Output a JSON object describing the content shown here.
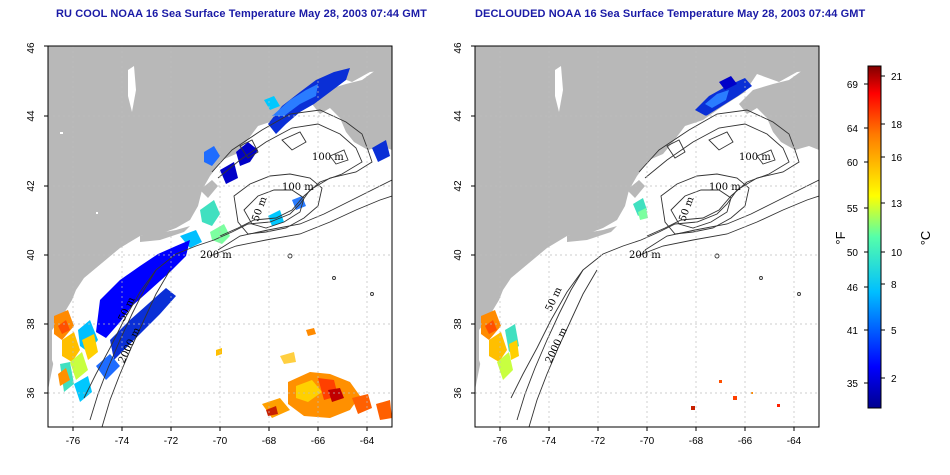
{
  "panels": [
    {
      "id": "left",
      "title": "RU COOL NOAA 16 Sea Surface Temperature May 28, 2003 07:44 GMT",
      "mode": "cloudy"
    },
    {
      "id": "right",
      "title": "DECLOUDED NOAA 16 Sea Surface Temperature May 28, 2003 07:44 GMT",
      "mode": "declouded"
    }
  ],
  "axes": {
    "x_ticks": [
      "-76",
      "-74",
      "-72",
      "-70",
      "-68",
      "-66",
      "-64"
    ],
    "y_ticks": [
      "36",
      "38",
      "40",
      "42",
      "44",
      "46"
    ]
  },
  "contour_labels": {
    "c100a": "100 m",
    "c100b": "100 m",
    "c50a": "50 m",
    "c200": "200 m",
    "c50b": "50 m",
    "c2000": "2000 m"
  },
  "colorbar": {
    "fahrenheit_ticks": [
      "69",
      "64",
      "60",
      "55",
      "50",
      "46",
      "41",
      "35"
    ],
    "celsius_ticks": [
      "21",
      "18",
      "16",
      "13",
      "10",
      "8",
      "5",
      "2"
    ],
    "fahrenheit_unit": "°F",
    "celsius_unit": "°C"
  },
  "colors": {
    "title": "#1a1aa6",
    "land": "#b8b8b8",
    "water": "#ffffff",
    "grid": "#bdbdbd"
  }
}
